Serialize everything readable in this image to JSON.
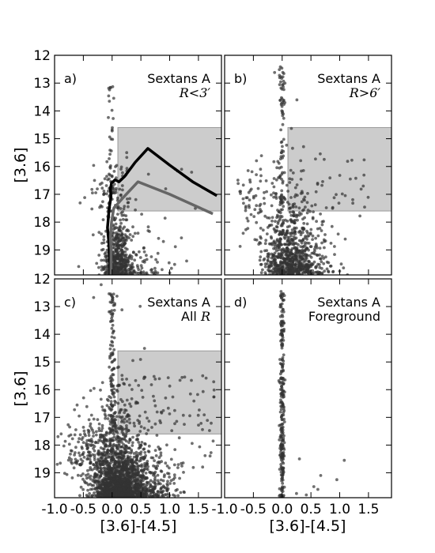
{
  "chart_data": {
    "type": "scatter",
    "layout": "2x2 grid, shared axes",
    "xlabel": "[3.6]-[4.5]",
    "ylabel": "[3.6]",
    "xlim": [
      -1.0,
      1.9
    ],
    "ylim": [
      19.9,
      12.0
    ],
    "y_inverted": true,
    "xticks": [
      -1.0,
      -0.5,
      0.0,
      0.5,
      1.0,
      1.5
    ],
    "xtick_labels": [
      "-1.0",
      "-0.5",
      "0.0",
      "0.5",
      "1.0",
      "1.5"
    ],
    "yticks": [
      12,
      13,
      14,
      15,
      16,
      17,
      18,
      19
    ],
    "ytick_labels": [
      "12",
      "13",
      "14",
      "15",
      "16",
      "17",
      "18",
      "19"
    ],
    "marker_color": "#333333",
    "panels": [
      {
        "id": "a",
        "panel_label": "a)",
        "galaxy": "Sextans A",
        "subset": "R<3′",
        "shaded_box": {
          "x": [
            0.1,
            1.9
          ],
          "y": [
            14.6,
            17.6
          ],
          "color": "#cccccc"
        },
        "points_approx": 650,
        "distribution": "red giant branch centered near color 0.05, brighter than 19.9 mag; sparse bright stars up to 13 mag",
        "lines": [
          {
            "color": "#000000",
            "points": [
              [
                -0.03,
                19.9
              ],
              [
                -0.05,
                18.9
              ],
              [
                -0.08,
                18.2
              ],
              [
                -0.05,
                17.5
              ],
              [
                -0.02,
                17.1
              ],
              [
                -0.03,
                16.8
              ],
              [
                -0.01,
                16.6
              ],
              [
                0.05,
                16.48
              ],
              [
                0.12,
                16.55
              ],
              [
                0.22,
                16.35
              ],
              [
                0.4,
                15.85
              ],
              [
                0.62,
                15.35
              ],
              [
                1.0,
                15.95
              ],
              [
                1.4,
                16.55
              ],
              [
                1.82,
                17.05
              ]
            ]
          },
          {
            "color": "#666666",
            "points": [
              [
                -0.02,
                19.9
              ],
              [
                -0.02,
                19.0
              ],
              [
                -0.03,
                18.5
              ],
              [
                -0.01,
                18.0
              ],
              [
                0.03,
                17.5
              ],
              [
                0.2,
                17.1
              ],
              [
                0.45,
                16.55
              ],
              [
                1.0,
                17.0
              ],
              [
                1.75,
                17.7
              ]
            ]
          }
        ]
      },
      {
        "id": "b",
        "panel_label": "b)",
        "galaxy": "Sextans A",
        "subset": "R>6′",
        "shaded_box": {
          "x": [
            0.1,
            1.9
          ],
          "y": [
            14.6,
            17.6
          ],
          "color": "#cccccc"
        },
        "points_approx": 1000,
        "distribution": "foreground vertical sequence at color 0.0 plus broad cloud fainter than 17 mag"
      },
      {
        "id": "c",
        "panel_label": "c)",
        "galaxy": "Sextans A",
        "subset": "All R",
        "shaded_box": {
          "x": [
            0.1,
            1.9
          ],
          "y": [
            14.6,
            17.6
          ],
          "color": "#cccccc"
        },
        "points_approx": 2300,
        "distribution": "dense cloud fainter than 16.5 mag spanning color -0.9 to 1.5, narrow vertical sequence near 0.0 up to 12.5 mag"
      },
      {
        "id": "d",
        "panel_label": "d)",
        "galaxy": "Sextans A",
        "subset": "Foreground",
        "points_approx": 280,
        "distribution": "narrow vertical sequence at color 0.0 from 12.5 to 19.9 mag with a few stars at redder colors"
      }
    ]
  }
}
